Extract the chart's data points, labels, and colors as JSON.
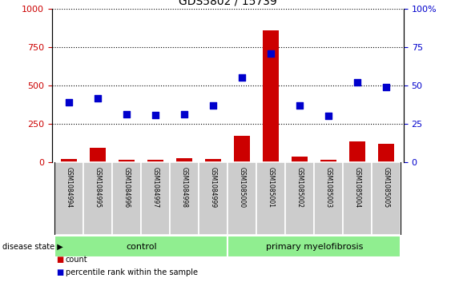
{
  "title": "GDS5802 / 15739",
  "samples": [
    "GSM1084994",
    "GSM1084995",
    "GSM1084996",
    "GSM1084997",
    "GSM1084998",
    "GSM1084999",
    "GSM1085000",
    "GSM1085001",
    "GSM1085002",
    "GSM1085003",
    "GSM1085004",
    "GSM1085005"
  ],
  "counts": [
    20,
    95,
    18,
    15,
    25,
    22,
    175,
    860,
    40,
    15,
    135,
    120
  ],
  "percentile_ranks": [
    390,
    415,
    315,
    310,
    315,
    370,
    555,
    710,
    370,
    305,
    520,
    490
  ],
  "bar_color": "#CC0000",
  "dot_color": "#0000CC",
  "ylim_left": [
    0,
    1000
  ],
  "ylim_right": [
    0,
    100
  ],
  "yticks_left": [
    0,
    250,
    500,
    750,
    1000
  ],
  "ytick_labels_left": [
    "0",
    "250",
    "500",
    "750",
    "1000"
  ],
  "yticks_right": [
    0,
    25,
    50,
    75,
    100
  ],
  "ytick_labels_right": [
    "0",
    "25",
    "50",
    "75",
    "100%"
  ],
  "ylabel_left_color": "#CC0000",
  "ylabel_right_color": "#0000CC",
  "disease_state_label": "disease state",
  "legend_count_label": "count",
  "legend_percentile_label": "percentile rank within the sample",
  "tick_area_color": "#cccccc",
  "green_color": "#90EE90",
  "n_control": 6,
  "n_total": 12
}
